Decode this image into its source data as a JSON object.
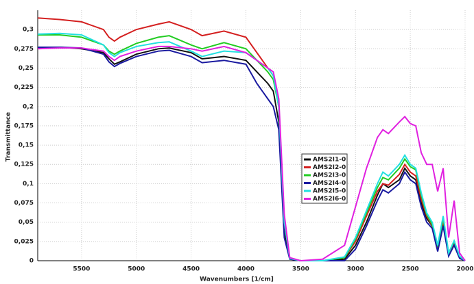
{
  "chart_data": {
    "type": "line",
    "x_label": "Wavenumbers [1/cm]",
    "y_label": "Transmittance",
    "x": [
      5900,
      5700,
      5500,
      5300,
      5250,
      5200,
      5150,
      5000,
      4800,
      4700,
      4500,
      4400,
      4200,
      4000,
      3900,
      3800,
      3750,
      3700,
      3650,
      3600,
      3500,
      3300,
      3100,
      3000,
      2900,
      2800,
      2750,
      2700,
      2600,
      2550,
      2500,
      2450,
      2400,
      2350,
      2300,
      2250,
      2200,
      2150,
      2100,
      2050,
      2000
    ],
    "series": [
      {
        "name": "AMS2I1-0",
        "color": "#111111",
        "values": [
          0.276,
          0.277,
          0.275,
          0.27,
          0.262,
          0.255,
          0.258,
          0.268,
          0.275,
          0.276,
          0.27,
          0.262,
          0.265,
          0.26,
          0.245,
          0.23,
          0.22,
          0.18,
          0.04,
          0.003,
          0,
          0,
          0.002,
          0.02,
          0.05,
          0.085,
          0.1,
          0.095,
          0.105,
          0.12,
          0.11,
          0.105,
          0.075,
          0.055,
          0.045,
          0.015,
          0.05,
          0.008,
          0.022,
          0.004,
          0
        ]
      },
      {
        "name": "AMS2I2-0",
        "color": "#d42020",
        "values": [
          0.315,
          0.313,
          0.31,
          0.3,
          0.29,
          0.285,
          0.29,
          0.3,
          0.307,
          0.31,
          0.3,
          0.292,
          0.298,
          0.29,
          0.27,
          0.25,
          0.24,
          0.2,
          0.05,
          0.003,
          0,
          0,
          0.004,
          0.025,
          0.058,
          0.09,
          0.1,
          0.098,
          0.112,
          0.125,
          0.115,
          0.11,
          0.08,
          0.058,
          0.046,
          0.017,
          0.052,
          0.009,
          0.024,
          0.005,
          0
        ]
      },
      {
        "name": "AMS2I3-0",
        "color": "#22cc22",
        "values": [
          0.293,
          0.293,
          0.29,
          0.28,
          0.272,
          0.268,
          0.272,
          0.282,
          0.29,
          0.292,
          0.28,
          0.275,
          0.283,
          0.275,
          0.26,
          0.245,
          0.235,
          0.2,
          0.05,
          0.003,
          0,
          0,
          0.004,
          0.028,
          0.062,
          0.095,
          0.108,
          0.105,
          0.12,
          0.132,
          0.122,
          0.118,
          0.085,
          0.06,
          0.047,
          0.018,
          0.055,
          0.01,
          0.025,
          0.005,
          0
        ]
      },
      {
        "name": "AMS2I4-0",
        "color": "#1a1aa0",
        "values": [
          0.277,
          0.277,
          0.276,
          0.268,
          0.258,
          0.252,
          0.256,
          0.265,
          0.272,
          0.273,
          0.265,
          0.257,
          0.26,
          0.255,
          0.23,
          0.21,
          0.2,
          0.17,
          0.03,
          0.002,
          0,
          0,
          0,
          0.015,
          0.045,
          0.078,
          0.092,
          0.088,
          0.1,
          0.115,
          0.105,
          0.1,
          0.07,
          0.05,
          0.042,
          0.012,
          0.045,
          0.006,
          0.02,
          0.003,
          0
        ]
      },
      {
        "name": "AMS2I5-0",
        "color": "#22e0e0",
        "values": [
          0.294,
          0.295,
          0.293,
          0.28,
          0.27,
          0.265,
          0.27,
          0.278,
          0.283,
          0.284,
          0.272,
          0.265,
          0.272,
          0.27,
          0.26,
          0.25,
          0.24,
          0.2,
          0.05,
          0.003,
          0,
          0,
          0.005,
          0.03,
          0.065,
          0.1,
          0.115,
          0.11,
          0.125,
          0.137,
          0.125,
          0.12,
          0.088,
          0.062,
          0.05,
          0.02,
          0.058,
          0.01,
          0.026,
          0.006,
          0
        ]
      },
      {
        "name": "AMS2I6-0",
        "color": "#e020e0",
        "values": [
          0.275,
          0.276,
          0.276,
          0.272,
          0.265,
          0.26,
          0.265,
          0.272,
          0.278,
          0.278,
          0.275,
          0.272,
          0.278,
          0.27,
          0.26,
          0.25,
          0.245,
          0.21,
          0.06,
          0.004,
          0,
          0.002,
          0.02,
          0.07,
          0.12,
          0.16,
          0.17,
          0.165,
          0.18,
          0.187,
          0.178,
          0.175,
          0.14,
          0.125,
          0.125,
          0.09,
          0.12,
          0.03,
          0.078,
          0.01,
          0
        ]
      }
    ],
    "xlim": [
      5900,
      2000
    ],
    "xticks": [
      5500,
      5000,
      4500,
      4000,
      3500,
      3000,
      2500,
      2000
    ],
    "ylim": [
      0,
      0.325
    ],
    "yticks": [
      0,
      {
        "value": 0.025,
        "label": "0,025"
      },
      {
        "value": 0.05,
        "label": "0,05"
      },
      {
        "value": 0.075,
        "label": "0,075"
      },
      {
        "value": 0.1,
        "label": "0,1"
      },
      {
        "value": 0.125,
        "label": "0,125"
      },
      {
        "value": 0.15,
        "label": "0,15"
      },
      {
        "value": 0.175,
        "label": "0,175"
      },
      {
        "value": 0.2,
        "label": "0,2"
      },
      {
        "value": 0.225,
        "label": "0,225"
      },
      {
        "value": 0.25,
        "label": "0,25"
      },
      {
        "value": 0.275,
        "label": "0,275"
      },
      {
        "value": 0.3,
        "label": "0,3"
      }
    ],
    "grid": true
  }
}
